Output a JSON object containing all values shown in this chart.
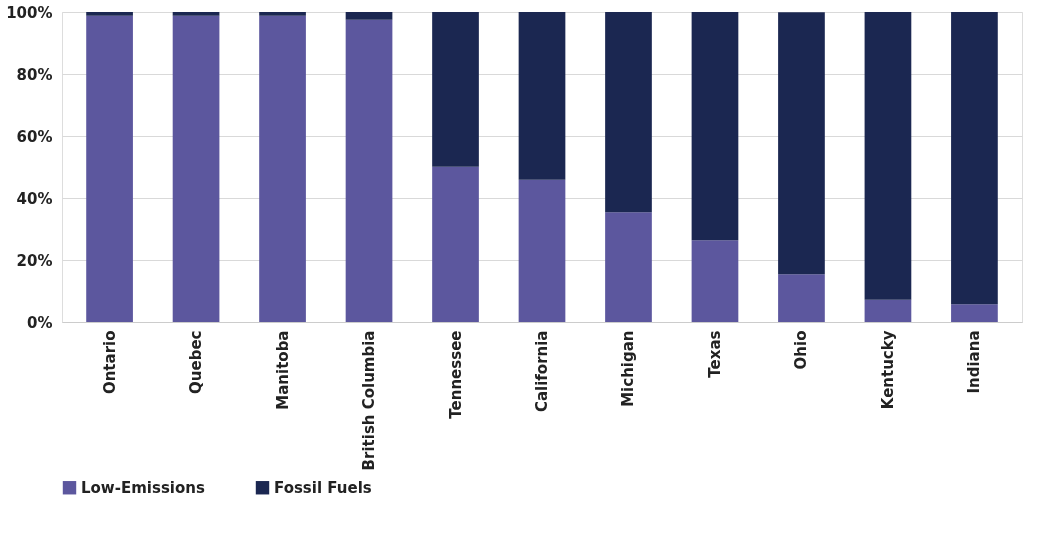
{
  "chart_data": {
    "type": "bar",
    "stacked": true,
    "categories": [
      "Ontario",
      "Quebec",
      "Manitoba",
      "British Columbia",
      "Tennessee",
      "California",
      "Michigan",
      "Texas",
      "Ohio",
      "Kentucky",
      "Indiana"
    ],
    "series": [
      {
        "name": "Low-Emissions",
        "color": "#5c579e",
        "values": [
          98.8,
          98.8,
          98.8,
          97.5,
          50.1,
          45.9,
          35.4,
          26.4,
          15.4,
          7.2,
          5.7
        ]
      },
      {
        "name": "Fossil Fuels",
        "color": "#1b2751",
        "values": [
          1.2,
          1.2,
          1.2,
          2.5,
          49.9,
          54.1,
          64.6,
          73.6,
          84.5,
          92.8,
          94.3
        ]
      }
    ],
    "ylim": [
      0,
      100
    ],
    "yticks": [
      {
        "value": 0,
        "label": "0%"
      },
      {
        "value": 20,
        "label": "20%"
      },
      {
        "value": 40,
        "label": "40%"
      },
      {
        "value": 60,
        "label": "60%"
      },
      {
        "value": 80,
        "label": "80%"
      },
      {
        "value": 100,
        "label": "100%"
      }
    ],
    "grid": "y",
    "legend": "bottom"
  }
}
